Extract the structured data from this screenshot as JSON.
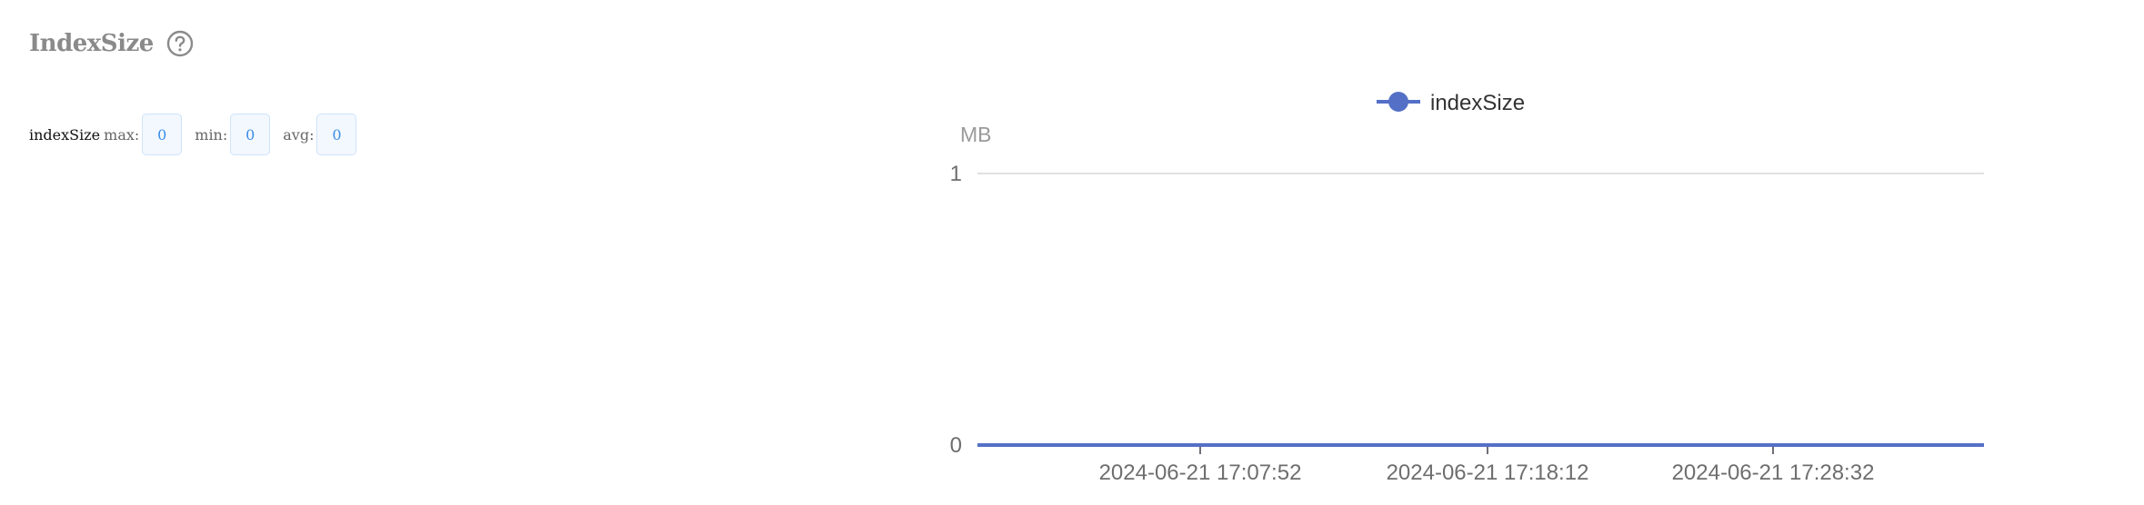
{
  "panel": {
    "title": "IndexSize",
    "help_icon": "question-circle-icon"
  },
  "stats": {
    "series_name": "indexSize",
    "max_label": "max:",
    "max_value": "0",
    "min_label": "min:",
    "min_value": "0",
    "avg_label": "avg:",
    "avg_value": "0"
  },
  "chart_data": {
    "type": "line",
    "title": "",
    "xlabel": "",
    "ylabel": "MB",
    "ylim": [
      0,
      1
    ],
    "yticks": [
      "0",
      "1"
    ],
    "xticks": [
      "2024-06-21 17:07:52",
      "2024-06-21 17:18:12",
      "2024-06-21 17:28:32"
    ],
    "grid": true,
    "legend_position": "top",
    "x": [
      "2024-06-21 17:07:52",
      "2024-06-21 17:18:12",
      "2024-06-21 17:28:32"
    ],
    "series": [
      {
        "name": "indexSize",
        "color": "#5470c6",
        "values": [
          0,
          0,
          0
        ]
      }
    ]
  }
}
